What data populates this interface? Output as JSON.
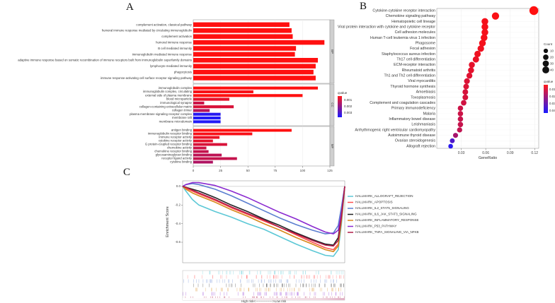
{
  "panels": {
    "a": "A",
    "b": "B",
    "c": "C"
  },
  "chart_data": [
    {
      "type": "bar",
      "panel": "A",
      "orientation": "horizontal",
      "xlim": [
        0,
        125
      ],
      "x_ticks": [
        "0",
        "25",
        "50",
        "75",
        "100",
        "125"
      ],
      "facets": [
        "BP",
        "CC",
        "MF"
      ],
      "color_legend": {
        "title": "qvalue",
        "labels": [
          "0.001",
          "0.002",
          "0.003"
        ],
        "low_color": "#ff1a1a",
        "high_color": "#1a1aff"
      },
      "groups": [
        {
          "facet": "BP",
          "bars": [
            {
              "label": "complement activation, classical pathway",
              "value": 88,
              "qvalue": 0.0001
            },
            {
              "label": "humoral immune response mediated by circulating immunoglobulin",
              "value": 90,
              "qvalue": 0.0001
            },
            {
              "label": "complement activation",
              "value": 91,
              "qvalue": 0.0001
            },
            {
              "label": "humoral immune response",
              "value": 120,
              "qvalue": 0.0001
            },
            {
              "label": "B cell mediated immunity",
              "value": 94,
              "qvalue": 0.0001
            },
            {
              "label": "immunoglobulin mediated immune response",
              "value": 93,
              "qvalue": 0.0001
            },
            {
              "label": "adaptive immune response based on somatic recombination of immune receptors built from immunoglobulin superfamily domains",
              "value": 114,
              "qvalue": 0.0001
            },
            {
              "label": "lymphocyte mediated immunity",
              "value": 112,
              "qvalue": 0.0001
            },
            {
              "label": "phagocytosis",
              "value": 110,
              "qvalue": 0.0001
            },
            {
              "label": "immune response-activating cell surface receptor signaling pathway",
              "value": 112,
              "qvalue": 0.0001
            }
          ]
        },
        {
          "facet": "CC",
          "bars": [
            {
              "label": "immunoglobulin complex",
              "value": 114,
              "qvalue": 0.0001
            },
            {
              "label": "immunoglobulin complex, circulating",
              "value": 55,
              "qvalue": 0.0002
            },
            {
              "label": "external side of plasma membrane",
              "value": 100,
              "qvalue": 0.0001
            },
            {
              "label": "blood microparticle",
              "value": 33,
              "qvalue": 0.0005
            },
            {
              "label": "immunological synapse",
              "value": 10,
              "qvalue": 0.0009
            },
            {
              "label": "collagen-containing extracellular matrix",
              "value": 37,
              "qvalue": 0.0007
            },
            {
              "label": "collagen trimer",
              "value": 15,
              "qvalue": 0.0012
            },
            {
              "label": "plasma membrane signaling receptor complex",
              "value": 25,
              "qvalue": 0.0034
            },
            {
              "label": "membrane raft",
              "value": 25,
              "qvalue": 0.0035
            },
            {
              "label": "membrane microdomain",
              "value": 25,
              "qvalue": 0.0035
            }
          ]
        },
        {
          "facet": "MF",
          "bars": [
            {
              "label": "antigen binding",
              "value": 90,
              "qvalue": 0.0001
            },
            {
              "label": "immunoglobulin receptor binding",
              "value": 54,
              "qvalue": 0.0002
            },
            {
              "label": "immune receptor activity",
              "value": 24,
              "qvalue": 0.0004
            },
            {
              "label": "cytokine receptor activity",
              "value": 18,
              "qvalue": 0.0005
            },
            {
              "label": "G protein-coupled receptor binding",
              "value": 31,
              "qvalue": 0.0007
            },
            {
              "label": "chemokine activity",
              "value": 12,
              "qvalue": 0.0009
            },
            {
              "label": "chemokine receptor binding",
              "value": 14,
              "qvalue": 0.001
            },
            {
              "label": "glycosaminoglycan binding",
              "value": 26,
              "qvalue": 0.0011
            },
            {
              "label": "receptor ligand activity",
              "value": 40,
              "qvalue": 0.001
            },
            {
              "label": "cytokine binding",
              "value": 18,
              "qvalue": 0.0013
            }
          ]
        }
      ]
    },
    {
      "type": "scatter",
      "panel": "B",
      "xlabel": "GeneRatio",
      "xlim": [
        0.0,
        0.125
      ],
      "x_ticks": [
        {
          "value": 0.03,
          "label": "0.03"
        },
        {
          "value": 0.06,
          "label": "0.06"
        },
        {
          "value": 0.09,
          "label": "0.09"
        },
        {
          "value": 0.12,
          "label": "0.12"
        }
      ],
      "size_legend": {
        "title": "Count",
        "labels": [
          "10",
          "20",
          "30",
          "40"
        ]
      },
      "color_legend": {
        "title": "qvalue",
        "labels": [
          "0.01",
          "0.02",
          "0.03",
          "0.04"
        ],
        "low_color": "#ff1a1a",
        "high_color": "#1a1aff"
      },
      "points": [
        {
          "label": "Cytokine-cytokine receptor interaction",
          "x": 0.119,
          "count": 45,
          "qvalue": 0.001
        },
        {
          "label": "Chemokine signaling pathway",
          "x": 0.072,
          "count": 27,
          "qvalue": 0.002
        },
        {
          "label": "Hematopoietic cell lineage",
          "x": 0.059,
          "count": 22,
          "qvalue": 0.003
        },
        {
          "label": "Viral protein interaction with cytokine and cytokine receptor",
          "x": 0.059,
          "count": 22,
          "qvalue": 0.003
        },
        {
          "label": "Cell adhesion molecules",
          "x": 0.059,
          "count": 22,
          "qvalue": 0.003
        },
        {
          "label": "Human T-cell leukemia virus 1 infection",
          "x": 0.058,
          "count": 22,
          "qvalue": 0.003
        },
        {
          "label": "Phagosome",
          "x": 0.056,
          "count": 21,
          "qvalue": 0.003
        },
        {
          "label": "Focal adhesion",
          "x": 0.054,
          "count": 20,
          "qvalue": 0.004
        },
        {
          "label": "Staphylococcus aureus infection",
          "x": 0.05,
          "count": 19,
          "qvalue": 0.004
        },
        {
          "label": "Th17 cell differentiation",
          "x": 0.048,
          "count": 18,
          "qvalue": 0.005
        },
        {
          "label": "ECM-receptor interaction",
          "x": 0.043,
          "count": 16,
          "qvalue": 0.006
        },
        {
          "label": "Rheumatoid arthritis",
          "x": 0.042,
          "count": 16,
          "qvalue": 0.006
        },
        {
          "label": "Th1 and Th2 cell differentiation",
          "x": 0.04,
          "count": 15,
          "qvalue": 0.007
        },
        {
          "label": "Viral myocarditis",
          "x": 0.037,
          "count": 14,
          "qvalue": 0.008
        },
        {
          "label": "Thyroid hormone synthesis",
          "x": 0.036,
          "count": 13,
          "qvalue": 0.008
        },
        {
          "label": "Amoebiasis",
          "x": 0.035,
          "count": 13,
          "qvalue": 0.009
        },
        {
          "label": "Toxoplasmosis",
          "x": 0.035,
          "count": 13,
          "qvalue": 0.009
        },
        {
          "label": "Complement and coagulation cascades",
          "x": 0.033,
          "count": 12,
          "qvalue": 0.01
        },
        {
          "label": "Primary immunodeficiency",
          "x": 0.029,
          "count": 11,
          "qvalue": 0.011
        },
        {
          "label": "Malaria",
          "x": 0.029,
          "count": 11,
          "qvalue": 0.011
        },
        {
          "label": "Inflammatory bowel disease",
          "x": 0.029,
          "count": 11,
          "qvalue": 0.012
        },
        {
          "label": "Leishmaniasis",
          "x": 0.029,
          "count": 11,
          "qvalue": 0.012
        },
        {
          "label": "Arrhythmogenic right ventricular cardiomyopathy",
          "x": 0.028,
          "count": 10,
          "qvalue": 0.013
        },
        {
          "label": "Autoimmune thyroid disease",
          "x": 0.023,
          "count": 9,
          "qvalue": 0.018
        },
        {
          "label": "Ovarian steroidogenesis",
          "x": 0.019,
          "count": 8,
          "qvalue": 0.035
        },
        {
          "label": "Allograft rejection",
          "x": 0.017,
          "count": 7,
          "qvalue": 0.042
        }
      ]
    },
    {
      "type": "line",
      "panel": "C",
      "ylabel": "Enrichment Score",
      "ylim": [
        -0.82,
        0.06
      ],
      "y_ticks": [
        {
          "value": 0.0,
          "label": "0.0"
        },
        {
          "value": -0.2,
          "label": "-0.2"
        },
        {
          "value": -0.4,
          "label": "-0.4"
        },
        {
          "value": -0.6,
          "label": "-0.6"
        }
      ],
      "rank_axis_label": "High risk<---------------->Low risk",
      "series": [
        {
          "name": "HALLMARK_ALLOGRAFT_REJECTION",
          "color": "#5cc8d6",
          "points": [
            [
              0,
              0
            ],
            [
              2,
              -0.05
            ],
            [
              6,
              -0.14
            ],
            [
              10,
              -0.2
            ],
            [
              20,
              -0.27
            ],
            [
              30,
              -0.33
            ],
            [
              40,
              -0.4
            ],
            [
              50,
              -0.46
            ],
            [
              60,
              -0.54
            ],
            [
              70,
              -0.62
            ],
            [
              80,
              -0.69
            ],
            [
              88,
              -0.74
            ],
            [
              93,
              -0.75
            ],
            [
              96,
              -0.68
            ],
            [
              98,
              -0.4
            ],
            [
              100,
              0
            ]
          ]
        },
        {
          "name": "HALLMARK_APOPTOSIS",
          "color": "#ff4f4f",
          "points": [
            [
              0,
              0
            ],
            [
              2,
              -0.02
            ],
            [
              6,
              -0.05
            ],
            [
              10,
              -0.08
            ],
            [
              20,
              -0.15
            ],
            [
              30,
              -0.23
            ],
            [
              40,
              -0.3
            ],
            [
              50,
              -0.37
            ],
            [
              60,
              -0.44
            ],
            [
              70,
              -0.52
            ],
            [
              80,
              -0.6
            ],
            [
              88,
              -0.66
            ],
            [
              93,
              -0.68
            ],
            [
              96,
              -0.62
            ],
            [
              98,
              -0.35
            ],
            [
              100,
              0
            ]
          ]
        },
        {
          "name": "HALLMARK_IL2_STAT5_SIGNALING",
          "color": "#5b7fd0",
          "points": [
            [
              0,
              0
            ],
            [
              2,
              0.02
            ],
            [
              6,
              0.03
            ],
            [
              10,
              0.02
            ],
            [
              20,
              -0.03
            ],
            [
              30,
              -0.1
            ],
            [
              40,
              -0.18
            ],
            [
              50,
              -0.26
            ],
            [
              60,
              -0.34
            ],
            [
              70,
              -0.41
            ],
            [
              80,
              -0.47
            ],
            [
              88,
              -0.51
            ],
            [
              93,
              -0.5
            ],
            [
              96,
              -0.42
            ],
            [
              98,
              -0.22
            ],
            [
              100,
              0
            ]
          ]
        },
        {
          "name": "HALLMARK_IL6_JAK_STAT3_SIGNALING",
          "color": "#222222",
          "points": [
            [
              0,
              0
            ],
            [
              2,
              -0.01
            ],
            [
              6,
              -0.03
            ],
            [
              10,
              -0.05
            ],
            [
              20,
              -0.12
            ],
            [
              30,
              -0.2
            ],
            [
              40,
              -0.27
            ],
            [
              50,
              -0.35
            ],
            [
              60,
              -0.42
            ],
            [
              70,
              -0.5
            ],
            [
              80,
              -0.57
            ],
            [
              88,
              -0.62
            ],
            [
              93,
              -0.63
            ],
            [
              96,
              -0.55
            ],
            [
              98,
              -0.3
            ],
            [
              100,
              0
            ]
          ]
        },
        {
          "name": "HALLMARK_INFLAMMATORY_RESPONSE",
          "color": "#d8891a",
          "points": [
            [
              0,
              0
            ],
            [
              2,
              -0.03
            ],
            [
              6,
              -0.07
            ],
            [
              10,
              -0.1
            ],
            [
              20,
              -0.17
            ],
            [
              30,
              -0.25
            ],
            [
              40,
              -0.32
            ],
            [
              50,
              -0.4
            ],
            [
              60,
              -0.47
            ],
            [
              70,
              -0.55
            ],
            [
              80,
              -0.62
            ],
            [
              88,
              -0.68
            ],
            [
              93,
              -0.7
            ],
            [
              96,
              -0.64
            ],
            [
              98,
              -0.36
            ],
            [
              100,
              0
            ]
          ]
        },
        {
          "name": "HALLMARK_P53_PATHWAY",
          "color": "#8a2ad0",
          "points": [
            [
              0,
              0
            ],
            [
              2,
              0.02
            ],
            [
              6,
              0.04
            ],
            [
              10,
              0.04
            ],
            [
              20,
              0.01
            ],
            [
              30,
              -0.05
            ],
            [
              40,
              -0.12
            ],
            [
              50,
              -0.2
            ],
            [
              60,
              -0.28
            ],
            [
              70,
              -0.35
            ],
            [
              80,
              -0.43
            ],
            [
              88,
              -0.49
            ],
            [
              93,
              -0.51
            ],
            [
              96,
              -0.47
            ],
            [
              98,
              -0.28
            ],
            [
              100,
              0
            ]
          ]
        },
        {
          "name": "HALLMARK_TNFA_SIGNALING_VIA_NFKB",
          "color": "#b01c48",
          "points": [
            [
              0,
              0
            ],
            [
              2,
              -0.01
            ],
            [
              6,
              -0.04
            ],
            [
              10,
              -0.07
            ],
            [
              20,
              -0.14
            ],
            [
              30,
              -0.22
            ],
            [
              40,
              -0.29
            ],
            [
              50,
              -0.36
            ],
            [
              60,
              -0.44
            ],
            [
              70,
              -0.51
            ],
            [
              80,
              -0.58
            ],
            [
              88,
              -0.63
            ],
            [
              93,
              -0.64
            ],
            [
              96,
              -0.58
            ],
            [
              98,
              -0.32
            ],
            [
              100,
              0
            ]
          ]
        }
      ]
    }
  ]
}
